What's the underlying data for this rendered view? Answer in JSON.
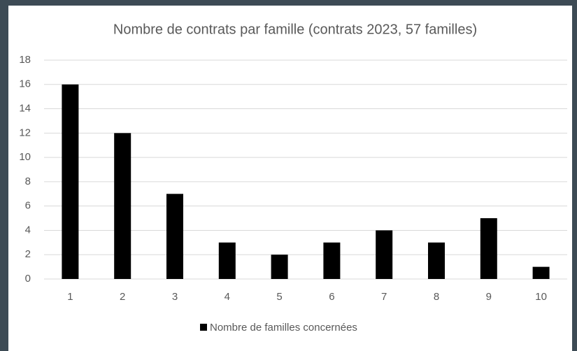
{
  "chart_data": {
    "type": "bar",
    "title": "Nombre de contrats par famille (contrats 2023, 57 familles)",
    "categories": [
      "1",
      "2",
      "3",
      "4",
      "5",
      "6",
      "7",
      "8",
      "9",
      "10"
    ],
    "series": [
      {
        "name": "Nombre de familles concernées",
        "color": "#000000",
        "values": [
          16,
          12,
          7,
          3,
          2,
          3,
          4,
          3,
          5,
          1
        ]
      }
    ],
    "ylim": [
      0,
      18
    ],
    "yticks": [
      0,
      2,
      4,
      6,
      8,
      10,
      12,
      14,
      16,
      18
    ],
    "grid": true,
    "legend": "bottom"
  }
}
